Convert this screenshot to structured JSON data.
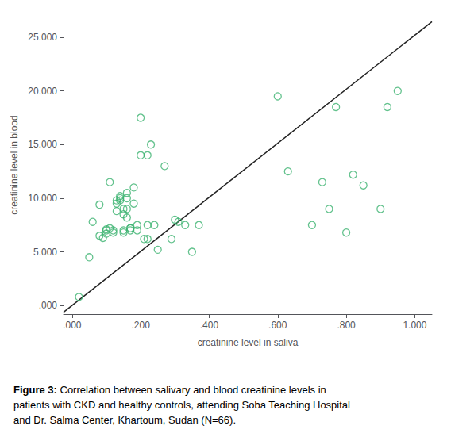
{
  "chart_data": {
    "type": "scatter",
    "title": "Figure 3:",
    "subtitle": "Correlation between salivary and blood creatinine levels in patients with CKD and healthy controls, attending Soba Teaching Hospital and Dr. Salma Center, Khartoum, Sudan (N=66).",
    "xlabel": "creatinine level in saliva",
    "ylabel": "creatinine level in blood",
    "xlim": [
      -0.025,
      1.05
    ],
    "ylim": [
      -0.8,
      27.0
    ],
    "xticks": [
      {
        "value": 0.0,
        "label": ".000"
      },
      {
        "value": 0.2,
        "label": ".200"
      },
      {
        "value": 0.4,
        "label": ".400"
      },
      {
        "value": 0.6,
        "label": ".600"
      },
      {
        "value": 0.8,
        "label": ".800"
      },
      {
        "value": 1.0,
        "label": "1.000"
      }
    ],
    "yticks": [
      {
        "value": 0.0,
        "label": ".000"
      },
      {
        "value": 5.0,
        "label": "5.000"
      },
      {
        "value": 10.0,
        "label": "10.000"
      },
      {
        "value": 15.0,
        "label": "15.000"
      },
      {
        "value": 20.0,
        "label": "20.000"
      },
      {
        "value": 25.0,
        "label": "25.000"
      }
    ],
    "grid": false,
    "series": [
      {
        "type": "scatter",
        "color": "#3cb371",
        "marker": "hollow",
        "x": [
          0.02,
          0.05,
          0.06,
          0.08,
          0.08,
          0.09,
          0.1,
          0.1,
          0.1,
          0.11,
          0.11,
          0.12,
          0.12,
          0.13,
          0.13,
          0.13,
          0.14,
          0.14,
          0.14,
          0.15,
          0.15,
          0.15,
          0.15,
          0.16,
          0.16,
          0.16,
          0.16,
          0.17,
          0.17,
          0.17,
          0.18,
          0.18,
          0.19,
          0.19,
          0.2,
          0.2,
          0.21,
          0.22,
          0.22,
          0.22,
          0.23,
          0.24,
          0.25,
          0.27,
          0.29,
          0.3,
          0.31,
          0.33,
          0.35,
          0.37,
          0.6,
          0.63,
          0.7,
          0.73,
          0.75,
          0.77,
          0.8,
          0.82,
          0.85,
          0.9,
          0.92,
          0.95
        ],
        "values": [
          0.8,
          4.5,
          7.8,
          9.4,
          6.5,
          6.3,
          7.1,
          6.7,
          7.0,
          11.5,
          7.2,
          6.8,
          7.0,
          9.8,
          9.5,
          8.8,
          10.0,
          9.8,
          10.2,
          8.5,
          7.0,
          6.8,
          9.0,
          10.5,
          10.0,
          9.0,
          8.2,
          7.2,
          7.0,
          7.2,
          11.0,
          9.5,
          7.5,
          7.0,
          14.0,
          17.5,
          6.2,
          14.0,
          6.2,
          7.5,
          15.0,
          7.5,
          5.2,
          13.0,
          6.2,
          8.0,
          7.8,
          7.5,
          5.0,
          7.5,
          19.5,
          12.5,
          7.5,
          11.5,
          9.0,
          18.5,
          6.8,
          12.2,
          11.2,
          9.0,
          18.5,
          20.0
        ]
      },
      {
        "type": "line",
        "color": "#222222",
        "line_style": "solid",
        "x": [
          -0.025,
          1.05
        ],
        "values": [
          -0.63,
          26.46
        ]
      }
    ]
  }
}
